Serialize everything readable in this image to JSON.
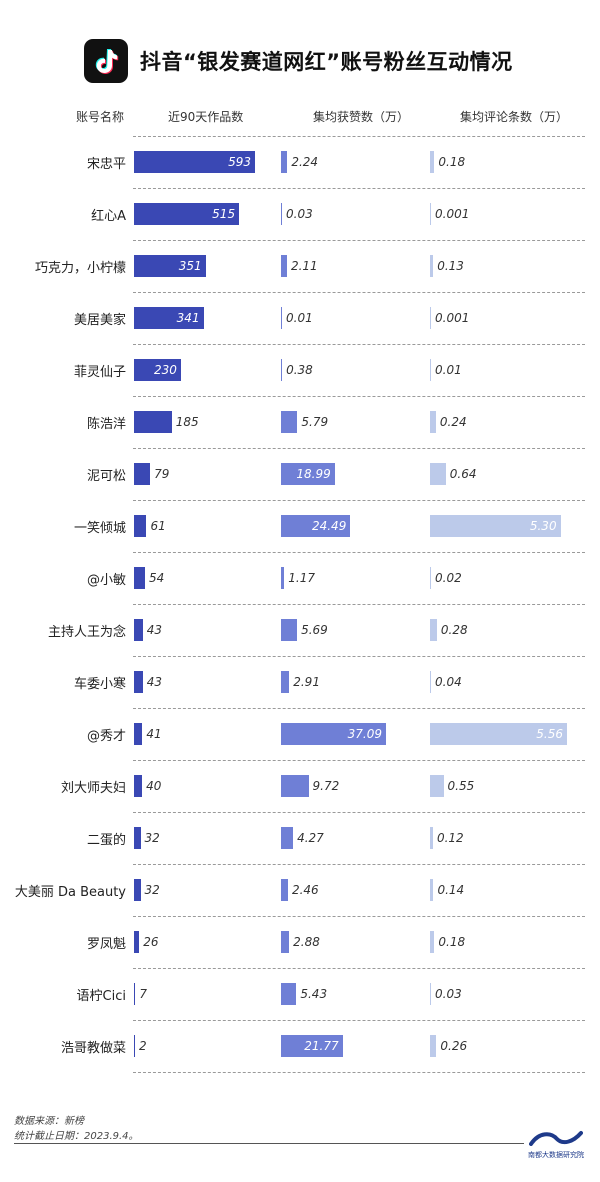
{
  "title": "抖音“银发赛道网红”账号粉丝互动情况",
  "column_headers": {
    "account": "账号名称",
    "works": "近90天作品数",
    "likes": "集均获赞数（万）",
    "comments": "集均评论条数（万）"
  },
  "colors": {
    "works_bar": "#3a48b4",
    "likes_bar": "#6f7fd6",
    "comments_bar": "#bccaea"
  },
  "chart_data": {
    "type": "bar",
    "orientation": "horizontal",
    "categories": [
      "宋忠平",
      "红心A",
      "巧克力，小柠檬",
      "美居美家",
      "菲灵仙子",
      "陈浩洋",
      "泥可松",
      "一笑倾城",
      "@小敏",
      "主持人王为念",
      "车委小寒",
      "@秀才",
      "刘大师夫妇",
      "二蛋的",
      "大美丽 Da Beauty",
      "罗凤魁",
      "语柠Cici",
      "浩哥教做菜"
    ],
    "series": [
      {
        "name": "近90天作品数",
        "values": [
          593,
          515,
          351,
          341,
          230,
          185,
          79,
          61,
          54,
          43,
          43,
          41,
          40,
          32,
          32,
          26,
          7,
          2
        ],
        "labels": [
          "593",
          "515",
          "351",
          "341",
          "230",
          "185",
          "79",
          "61",
          "54",
          "43",
          "43",
          "41",
          "40",
          "32",
          "32",
          "26",
          "7",
          "2"
        ]
      },
      {
        "name": "集均获赞数（万）",
        "values": [
          2.24,
          0.03,
          2.11,
          0.01,
          0.38,
          5.79,
          18.99,
          24.49,
          1.17,
          5.69,
          2.91,
          37.09,
          9.72,
          4.27,
          2.46,
          2.88,
          5.43,
          21.77
        ],
        "labels": [
          "2.24",
          "0.03",
          "2.11",
          "0.01",
          "0.38",
          "5.79",
          "18.99",
          "24.49",
          "1.17",
          "5.69",
          "2.91",
          "37.09",
          "9.72",
          "4.27",
          "2.46",
          "2.88",
          "5.43",
          "21.77"
        ]
      },
      {
        "name": "集均评论条数（万）",
        "values": [
          0.18,
          0.001,
          0.13,
          0.001,
          0.01,
          0.24,
          0.64,
          5.3,
          0.02,
          0.28,
          0.04,
          5.56,
          0.55,
          0.12,
          0.14,
          0.18,
          0.03,
          0.26
        ],
        "labels": [
          "0.18",
          "0.001",
          "0.13",
          "0.001",
          "0.01",
          "0.24",
          "0.64",
          "5.30",
          "0.02",
          "0.28",
          "0.04",
          "5.56",
          "0.55",
          "0.12",
          "0.14",
          "0.18",
          "0.03",
          "0.26"
        ]
      }
    ]
  },
  "footer": {
    "source": "数据来源：新榜",
    "date": "统计截止日期：2023.9.4。",
    "org": "南都大数据研究院"
  }
}
